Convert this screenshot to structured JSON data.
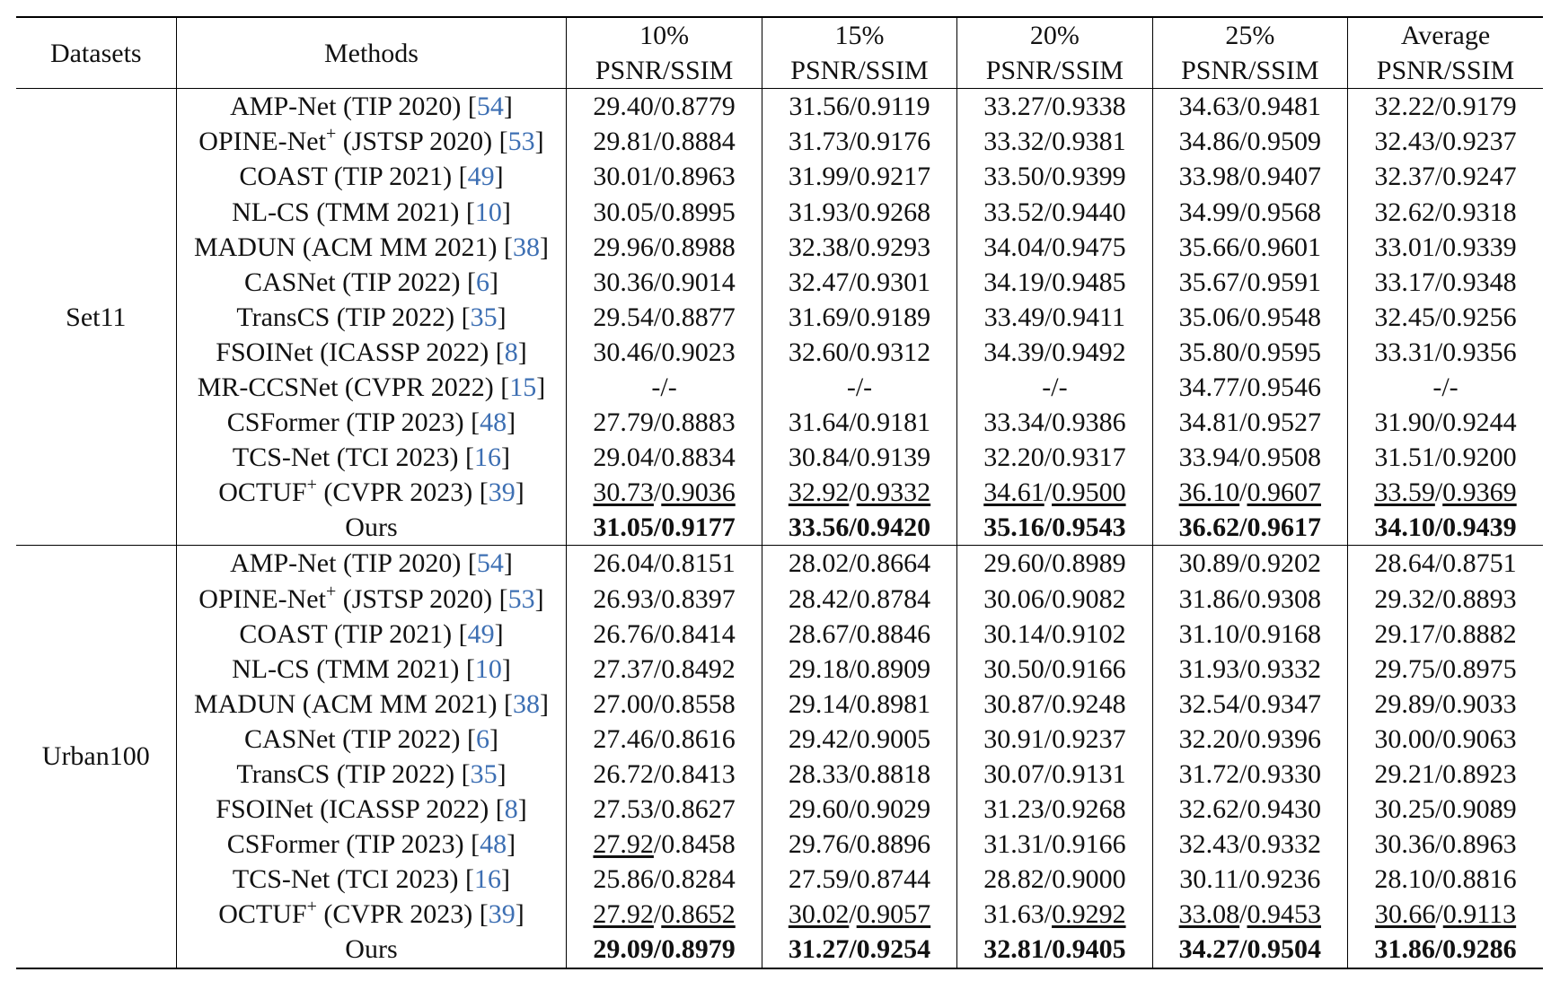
{
  "header": {
    "datasets": "Datasets",
    "methods": "Methods",
    "ratios": [
      "10%",
      "15%",
      "20%",
      "25%",
      "Average"
    ],
    "metric": "PSNR/SSIM"
  },
  "groups": [
    {
      "dataset": "Set11",
      "rows": [
        {
          "name": "AMP-Net (TIP 2020) [",
          "sup": "",
          "cite": "54",
          "vals": [
            [
              "29.40",
              "0.8779"
            ],
            [
              "31.56",
              "0.9119"
            ],
            [
              "33.27",
              "0.9338"
            ],
            [
              "34.63",
              "0.9481"
            ],
            [
              "32.22",
              "0.9179"
            ]
          ]
        },
        {
          "name": "OPINE-Net",
          "sup": "+",
          "venue": " (JSTSP 2020) [",
          "cite": "53",
          "vals": [
            [
              "29.81",
              "0.8884"
            ],
            [
              "31.73",
              "0.9176"
            ],
            [
              "33.32",
              "0.9381"
            ],
            [
              "34.86",
              "0.9509"
            ],
            [
              "32.43",
              "0.9237"
            ]
          ]
        },
        {
          "name": "COAST (TIP 2021) [",
          "sup": "",
          "cite": "49",
          "vals": [
            [
              "30.01",
              "0.8963"
            ],
            [
              "31.99",
              "0.9217"
            ],
            [
              "33.50",
              "0.9399"
            ],
            [
              "33.98",
              "0.9407"
            ],
            [
              "32.37",
              "0.9247"
            ]
          ]
        },
        {
          "name": "NL-CS (TMM 2021) [",
          "sup": "",
          "cite": "10",
          "vals": [
            [
              "30.05",
              "0.8995"
            ],
            [
              "31.93",
              "0.9268"
            ],
            [
              "33.52",
              "0.9440"
            ],
            [
              "34.99",
              "0.9568"
            ],
            [
              "32.62",
              "0.9318"
            ]
          ]
        },
        {
          "name": "MADUN (ACM MM 2021) [",
          "sup": "",
          "cite": "38",
          "vals": [
            [
              "29.96",
              "0.8988"
            ],
            [
              "32.38",
              "0.9293"
            ],
            [
              "34.04",
              "0.9475"
            ],
            [
              "35.66",
              "0.9601"
            ],
            [
              "33.01",
              "0.9339"
            ]
          ]
        },
        {
          "name": "CASNet (TIP 2022) [",
          "sup": "",
          "cite": "6",
          "vals": [
            [
              "30.36",
              "0.9014"
            ],
            [
              "32.47",
              "0.9301"
            ],
            [
              "34.19",
              "0.9485"
            ],
            [
              "35.67",
              "0.9591"
            ],
            [
              "33.17",
              "0.9348"
            ]
          ]
        },
        {
          "name": "TransCS (TIP 2022) [",
          "sup": "",
          "cite": "35",
          "vals": [
            [
              "29.54",
              "0.8877"
            ],
            [
              "31.69",
              "0.9189"
            ],
            [
              "33.49",
              "0.9411"
            ],
            [
              "35.06",
              "0.9548"
            ],
            [
              "32.45",
              "0.9256"
            ]
          ]
        },
        {
          "name": "FSOINet (ICASSP 2022) [",
          "sup": "",
          "cite": "8",
          "vals": [
            [
              "30.46",
              "0.9023"
            ],
            [
              "32.60",
              "0.9312"
            ],
            [
              "34.39",
              "0.9492"
            ],
            [
              "35.80",
              "0.9595"
            ],
            [
              "33.31",
              "0.9356"
            ]
          ]
        },
        {
          "name": "MR-CCSNet (CVPR 2022) [",
          "sup": "",
          "cite": "15",
          "vals": [
            [
              "-",
              "-"
            ],
            [
              "-",
              "-"
            ],
            [
              "-",
              "-"
            ],
            [
              "34.77",
              "0.9546"
            ],
            [
              "-",
              "-"
            ]
          ]
        },
        {
          "name": "CSFormer (TIP 2023) [",
          "sup": "",
          "cite": "48",
          "vals": [
            [
              "27.79",
              "0.8883"
            ],
            [
              "31.64",
              "0.9181"
            ],
            [
              "33.34",
              "0.9386"
            ],
            [
              "34.81",
              "0.9527"
            ],
            [
              "31.90",
              "0.9244"
            ]
          ]
        },
        {
          "name": "TCS-Net (TCI 2023) [",
          "sup": "",
          "cite": "16",
          "vals": [
            [
              "29.04",
              "0.8834"
            ],
            [
              "30.84",
              "0.9139"
            ],
            [
              "32.20",
              "0.9317"
            ],
            [
              "33.94",
              "0.9508"
            ],
            [
              "31.51",
              "0.9200"
            ]
          ]
        },
        {
          "name": "OCTUF",
          "sup": "+",
          "venue": " (CVPR 2023) [",
          "cite": "39",
          "underline": [
            [
              true,
              true
            ],
            [
              true,
              true
            ],
            [
              true,
              true
            ],
            [
              true,
              true
            ],
            [
              true,
              true
            ]
          ],
          "vals": [
            [
              "30.73",
              "0.9036"
            ],
            [
              "32.92",
              "0.9332"
            ],
            [
              "34.61",
              "0.9500"
            ],
            [
              "36.10",
              "0.9607"
            ],
            [
              "33.59",
              "0.9369"
            ]
          ]
        },
        {
          "name": "Ours",
          "sup": "",
          "cite": "",
          "bold": true,
          "vals": [
            [
              "31.05",
              "0.9177"
            ],
            [
              "33.56",
              "0.9420"
            ],
            [
              "35.16",
              "0.9543"
            ],
            [
              "36.62",
              "0.9617"
            ],
            [
              "34.10",
              "0.9439"
            ]
          ]
        }
      ]
    },
    {
      "dataset": "Urban100",
      "rows": [
        {
          "name": "AMP-Net (TIP 2020) [",
          "sup": "",
          "cite": "54",
          "vals": [
            [
              "26.04",
              "0.8151"
            ],
            [
              "28.02",
              "0.8664"
            ],
            [
              "29.60",
              "0.8989"
            ],
            [
              "30.89",
              "0.9202"
            ],
            [
              "28.64",
              "0.8751"
            ]
          ]
        },
        {
          "name": "OPINE-Net",
          "sup": "+",
          "venue": " (JSTSP 2020) [",
          "cite": "53",
          "vals": [
            [
              "26.93",
              "0.8397"
            ],
            [
              "28.42",
              "0.8784"
            ],
            [
              "30.06",
              "0.9082"
            ],
            [
              "31.86",
              "0.9308"
            ],
            [
              "29.32",
              "0.8893"
            ]
          ]
        },
        {
          "name": "COAST (TIP 2021) [",
          "sup": "",
          "cite": "49",
          "vals": [
            [
              "26.76",
              "0.8414"
            ],
            [
              "28.67",
              "0.8846"
            ],
            [
              "30.14",
              "0.9102"
            ],
            [
              "31.10",
              "0.9168"
            ],
            [
              "29.17",
              "0.8882"
            ]
          ]
        },
        {
          "name": "NL-CS (TMM 2021) [",
          "sup": "",
          "cite": "10",
          "vals": [
            [
              "27.37",
              "0.8492"
            ],
            [
              "29.18",
              "0.8909"
            ],
            [
              "30.50",
              "0.9166"
            ],
            [
              "31.93",
              "0.9332"
            ],
            [
              "29.75",
              "0.8975"
            ]
          ]
        },
        {
          "name": "MADUN (ACM MM 2021) [",
          "sup": "",
          "cite": "38",
          "vals": [
            [
              "27.00",
              "0.8558"
            ],
            [
              "29.14",
              "0.8981"
            ],
            [
              "30.87",
              "0.9248"
            ],
            [
              "32.54",
              "0.9347"
            ],
            [
              "29.89",
              "0.9033"
            ]
          ]
        },
        {
          "name": "CASNet (TIP 2022) [",
          "sup": "",
          "cite": "6",
          "vals": [
            [
              "27.46",
              "0.8616"
            ],
            [
              "29.42",
              "0.9005"
            ],
            [
              "30.91",
              "0.9237"
            ],
            [
              "32.20",
              "0.9396"
            ],
            [
              "30.00",
              "0.9063"
            ]
          ]
        },
        {
          "name": "TransCS (TIP 2022) [",
          "sup": "",
          "cite": "35",
          "vals": [
            [
              "26.72",
              "0.8413"
            ],
            [
              "28.33",
              "0.8818"
            ],
            [
              "30.07",
              "0.9131"
            ],
            [
              "31.72",
              "0.9330"
            ],
            [
              "29.21",
              "0.8923"
            ]
          ]
        },
        {
          "name": "FSOINet (ICASSP 2022) [",
          "sup": "",
          "cite": "8",
          "vals": [
            [
              "27.53",
              "0.8627"
            ],
            [
              "29.60",
              "0.9029"
            ],
            [
              "31.23",
              "0.9268"
            ],
            [
              "32.62",
              "0.9430"
            ],
            [
              "30.25",
              "0.9089"
            ]
          ]
        },
        {
          "name": "CSFormer (TIP 2023) [",
          "sup": "",
          "cite": "48",
          "underline": [
            [
              true,
              false
            ],
            [
              false,
              false
            ],
            [
              false,
              false
            ],
            [
              false,
              false
            ],
            [
              false,
              false
            ]
          ],
          "vals": [
            [
              "27.92",
              "0.8458"
            ],
            [
              "29.76",
              "0.8896"
            ],
            [
              "31.31",
              "0.9166"
            ],
            [
              "32.43",
              "0.9332"
            ],
            [
              "30.36",
              "0.8963"
            ]
          ]
        },
        {
          "name": "TCS-Net (TCI 2023) [",
          "sup": "",
          "cite": "16",
          "vals": [
            [
              "25.86",
              "0.8284"
            ],
            [
              "27.59",
              "0.8744"
            ],
            [
              "28.82",
              "0.9000"
            ],
            [
              "30.11",
              "0.9236"
            ],
            [
              "28.10",
              "0.8816"
            ]
          ]
        },
        {
          "name": "OCTUF",
          "sup": "+",
          "venue": " (CVPR 2023) [",
          "cite": "39",
          "underline": [
            [
              true,
              true
            ],
            [
              true,
              true
            ],
            [
              false,
              true
            ],
            [
              true,
              true
            ],
            [
              true,
              true
            ]
          ],
          "vals": [
            [
              "27.92",
              "0.8652"
            ],
            [
              "30.02",
              "0.9057"
            ],
            [
              "31.63",
              "0.9292"
            ],
            [
              "33.08",
              "0.9453"
            ],
            [
              "30.66",
              "0.9113"
            ]
          ]
        },
        {
          "name": "Ours",
          "sup": "",
          "cite": "",
          "bold": true,
          "vals": [
            [
              "29.09",
              "0.8979"
            ],
            [
              "31.27",
              "0.9254"
            ],
            [
              "32.81",
              "0.9405"
            ],
            [
              "34.27",
              "0.9504"
            ],
            [
              "31.86",
              "0.9286"
            ]
          ]
        }
      ]
    }
  ]
}
